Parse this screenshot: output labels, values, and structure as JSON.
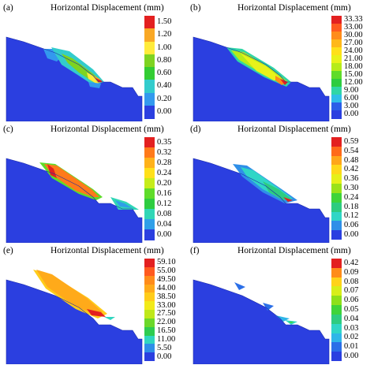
{
  "figure": {
    "panels": [
      {
        "id": "a",
        "label": "(a)",
        "title": "Horizontal Displacement (mm)",
        "scale_ticks": [
          "1.50",
          "1.20",
          "1.00",
          "0.80",
          "0.60",
          "0.40",
          "0.20",
          "0.00"
        ],
        "scale_colors": [
          "#e32020",
          "#f9a825",
          "#ffeb3b",
          "#7ed321",
          "#33cc33",
          "#33cccc",
          "#3399ee",
          "#2b3fe0"
        ],
        "contour_type": "a"
      },
      {
        "id": "b",
        "label": "(b)",
        "title": "Horizontal Displacement (mm)",
        "scale_ticks": [
          "33.33",
          "33.00",
          "30.00",
          "27.00",
          "24.00",
          "21.00",
          "18.00",
          "15.00",
          "12.00",
          "9.00",
          "6.00",
          "3.00",
          "0.00"
        ],
        "scale_colors": [
          "#e32020",
          "#ff5a1f",
          "#ff8c1a",
          "#ffb81a",
          "#ffe01a",
          "#e9f21a",
          "#b6ec1a",
          "#5fdc2a",
          "#2ecc40",
          "#30d6a6",
          "#2fbfe8",
          "#2b5fe8",
          "#2b3fe0"
        ],
        "contour_type": "b"
      },
      {
        "id": "c",
        "label": "(c)",
        "title": "Horizontal Displacement (mm)",
        "scale_ticks": [
          "0.35",
          "0.32",
          "0.28",
          "0.24",
          "0.20",
          "0.16",
          "0.12",
          "0.08",
          "0.04",
          "0.00"
        ],
        "scale_colors": [
          "#e32020",
          "#ff7a1a",
          "#ffb21a",
          "#ffe01a",
          "#c6ec1a",
          "#5fdc2a",
          "#2ecc40",
          "#30d6b6",
          "#2f9fe8",
          "#2b3fe0"
        ],
        "contour_type": "c"
      },
      {
        "id": "d",
        "label": "(d)",
        "title": "Horizontal Displacement (mm)",
        "scale_ticks": [
          "0.59",
          "0.54",
          "0.48",
          "0.42",
          "0.36",
          "0.30",
          "0.24",
          "0.18",
          "0.12",
          "0.06",
          "0.00"
        ],
        "scale_colors": [
          "#e32020",
          "#ff6a1a",
          "#ffa61a",
          "#ffd81a",
          "#e6f01a",
          "#9ae21a",
          "#3fd43a",
          "#2ecc80",
          "#30d6c6",
          "#2f8fe8",
          "#2b3fe0"
        ],
        "contour_type": "d"
      },
      {
        "id": "e",
        "label": "(e)",
        "title": "Horizontal Displacement (mm)",
        "scale_ticks": [
          "59.10",
          "55.00",
          "49.50",
          "44.00",
          "38.50",
          "33.00",
          "27.50",
          "22.00",
          "16.50",
          "11.00",
          "5.50",
          "0.00"
        ],
        "scale_colors": [
          "#e32020",
          "#ff5a1f",
          "#ff8c1a",
          "#ffaa1a",
          "#ffcc1a",
          "#f2ea1a",
          "#bfe81a",
          "#6cd82a",
          "#2ecc50",
          "#30d6c0",
          "#2f8fe8",
          "#2b3fe0"
        ],
        "contour_type": "e"
      },
      {
        "id": "f",
        "label": "(f)",
        "title": "Horizontal Displacement (mm)",
        "scale_ticks": [
          "0.42",
          "0.09",
          "0.08",
          "0.07",
          "0.06",
          "0.05",
          "0.04",
          "0.03",
          "0.02",
          "0.01",
          "0.00"
        ],
        "scale_colors": [
          "#e32020",
          "#ff8c1a",
          "#ffd21a",
          "#d8ee1a",
          "#8ee01a",
          "#3fd43a",
          "#2ecc80",
          "#30d6c6",
          "#2fb6e8",
          "#2b6fe8",
          "#2b3fe0"
        ],
        "contour_type": "f"
      }
    ]
  }
}
